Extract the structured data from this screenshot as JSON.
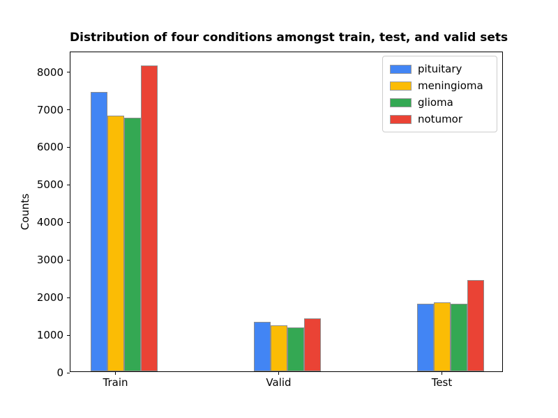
{
  "chart_data": {
    "type": "bar",
    "title": "Distribution of four conditions amongst train, test, and valid sets",
    "xlabel": "",
    "ylabel": "Counts",
    "categories": [
      "Train",
      "Valid",
      "Test"
    ],
    "series": [
      {
        "name": "pituitary",
        "color": "#4285F4",
        "values": [
          7430,
          1320,
          1800
        ]
      },
      {
        "name": "meningioma",
        "color": "#FBBC05",
        "values": [
          6800,
          1230,
          1835
        ]
      },
      {
        "name": "glioma",
        "color": "#34A853",
        "values": [
          6750,
          1165,
          1795
        ]
      },
      {
        "name": "notumor",
        "color": "#EA4335",
        "values": [
          8140,
          1410,
          2425
        ]
      }
    ],
    "ylim": [
      0,
      8530
    ],
    "yticks": [
      0,
      1000,
      2000,
      3000,
      4000,
      5000,
      6000,
      7000,
      8000
    ],
    "bar_edge_color": "#8c8c8c",
    "legend_border_color": "#cccccc",
    "legend_position": "upper right",
    "grid": false
  }
}
